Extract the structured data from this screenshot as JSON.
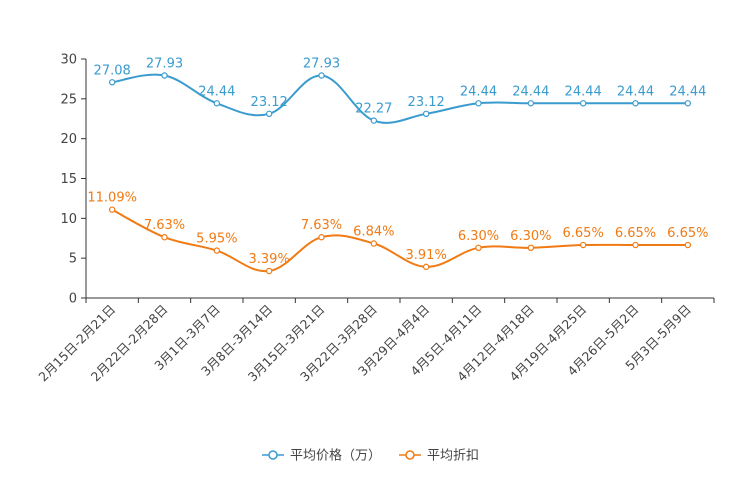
{
  "chart_data": {
    "type": "line",
    "categories": [
      "2月15日-2月21日",
      "2月22日-2月28日",
      "3月1日-3月7日",
      "3月8日-3月14日",
      "3月15日-3月21日",
      "3月22日-3月28日",
      "3月29日-4月4日",
      "4月5日-4月11日",
      "4月12日-4月18日",
      "4月19日-4月25日",
      "4月26日-5月2日",
      "5月3日-5月9日"
    ],
    "series": [
      {
        "name": "平均价格（万）",
        "color": "#3a9bcf",
        "values": [
          27.08,
          27.93,
          24.44,
          23.12,
          27.93,
          22.27,
          23.12,
          24.44,
          24.44,
          24.44,
          24.44,
          24.44
        ],
        "labels": [
          "27.08",
          "27.93",
          "24.44",
          "23.12",
          "27.93",
          "22.27",
          "23.12",
          "24.44",
          "24.44",
          "24.44",
          "24.44",
          "24.44"
        ]
      },
      {
        "name": "平均折扣",
        "color": "#f07a14",
        "values": [
          11.09,
          7.63,
          5.95,
          3.39,
          7.63,
          6.84,
          3.91,
          6.3,
          6.3,
          6.65,
          6.65,
          6.65
        ],
        "labels": [
          "11.09%",
          "7.63%",
          "5.95%",
          "3.39%",
          "7.63%",
          "6.84%",
          "3.91%",
          "6.30%",
          "6.30%",
          "6.65%",
          "6.65%",
          "6.65%"
        ]
      }
    ],
    "yticks": [
      "0",
      "5",
      "10",
      "15",
      "20",
      "25",
      "30"
    ],
    "ylim": [
      0,
      30
    ],
    "title": "",
    "xlabel": "",
    "ylabel": "",
    "legend_position": "bottom-center",
    "grid": false
  }
}
